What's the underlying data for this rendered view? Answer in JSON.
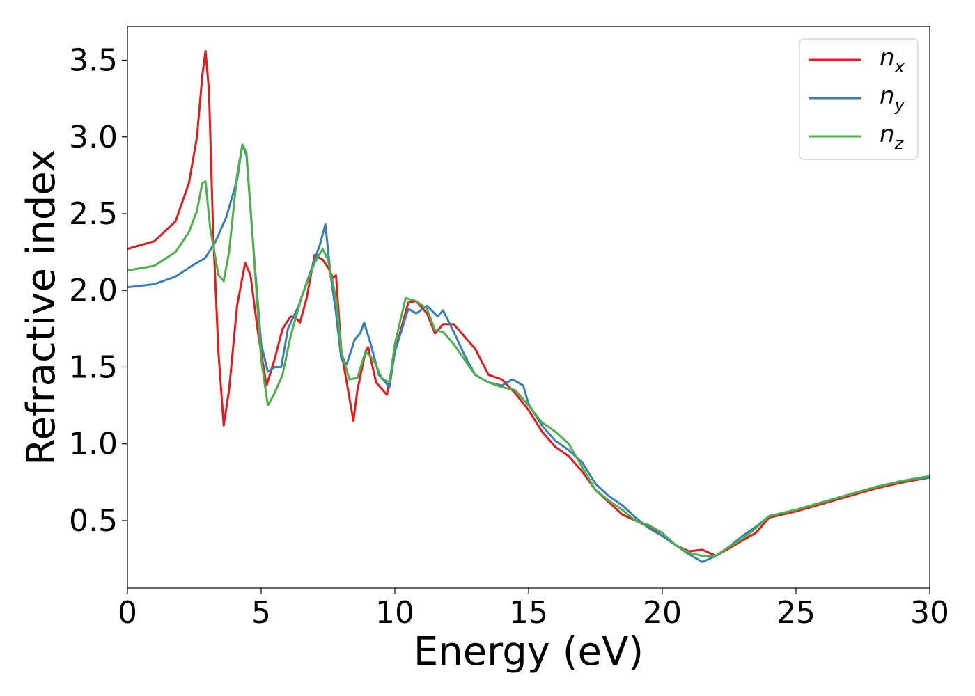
{
  "chart_data": {
    "type": "line",
    "xlabel": "Energy (eV)",
    "ylabel": "Refractive index",
    "xlim": [
      0,
      30
    ],
    "ylim": [
      0.06,
      3.72
    ],
    "x_ticks": [
      "0",
      "5",
      "10",
      "15",
      "20",
      "25",
      "30"
    ],
    "y_ticks": [
      "0.5",
      "1.0",
      "1.5",
      "2.0",
      "2.5",
      "3.0",
      "3.5"
    ],
    "x_tick_values": [
      0,
      5,
      10,
      15,
      20,
      25,
      30
    ],
    "y_tick_values": [
      0.5,
      1.0,
      1.5,
      2.0,
      2.5,
      3.0,
      3.5
    ],
    "grid": false,
    "legend_position": "top-right",
    "series": [
      {
        "name": "n_x",
        "base": "n",
        "sub": "x",
        "color": "#e41a1c",
        "points": [
          [
            0,
            2.27
          ],
          [
            1,
            2.32
          ],
          [
            1.8,
            2.45
          ],
          [
            2.3,
            2.7
          ],
          [
            2.6,
            3.0
          ],
          [
            2.8,
            3.4
          ],
          [
            2.92,
            3.56
          ],
          [
            3.05,
            3.3
          ],
          [
            3.2,
            2.4
          ],
          [
            3.4,
            1.6
          ],
          [
            3.6,
            1.12
          ],
          [
            3.8,
            1.35
          ],
          [
            4.1,
            1.9
          ],
          [
            4.4,
            2.18
          ],
          [
            4.6,
            2.1
          ],
          [
            4.9,
            1.7
          ],
          [
            5.2,
            1.38
          ],
          [
            5.5,
            1.55
          ],
          [
            5.8,
            1.75
          ],
          [
            6.1,
            1.83
          ],
          [
            6.3,
            1.82
          ],
          [
            6.45,
            1.79
          ],
          [
            6.7,
            1.95
          ],
          [
            7.0,
            2.23
          ],
          [
            7.3,
            2.2
          ],
          [
            7.5,
            2.15
          ],
          [
            7.7,
            2.08
          ],
          [
            7.8,
            2.1
          ],
          [
            8.0,
            1.6
          ],
          [
            8.3,
            1.3
          ],
          [
            8.45,
            1.15
          ],
          [
            8.6,
            1.35
          ],
          [
            8.9,
            1.6
          ],
          [
            9.0,
            1.63
          ],
          [
            9.3,
            1.4
          ],
          [
            9.7,
            1.32
          ],
          [
            10.0,
            1.6
          ],
          [
            10.5,
            1.92
          ],
          [
            10.8,
            1.93
          ],
          [
            11.2,
            1.85
          ],
          [
            11.5,
            1.72
          ],
          [
            11.8,
            1.78
          ],
          [
            12.2,
            1.78
          ],
          [
            12.6,
            1.7
          ],
          [
            13.0,
            1.62
          ],
          [
            13.5,
            1.45
          ],
          [
            14.0,
            1.42
          ],
          [
            14.5,
            1.33
          ],
          [
            15.0,
            1.22
          ],
          [
            15.5,
            1.08
          ],
          [
            16.0,
            0.98
          ],
          [
            16.5,
            0.92
          ],
          [
            17.0,
            0.82
          ],
          [
            17.5,
            0.7
          ],
          [
            18.0,
            0.62
          ],
          [
            18.5,
            0.54
          ],
          [
            19.0,
            0.5
          ],
          [
            19.5,
            0.46
          ],
          [
            20.0,
            0.4
          ],
          [
            20.5,
            0.34
          ],
          [
            21.0,
            0.3
          ],
          [
            21.5,
            0.31
          ],
          [
            22.0,
            0.27
          ],
          [
            22.5,
            0.32
          ],
          [
            23.0,
            0.37
          ],
          [
            23.5,
            0.42
          ],
          [
            24.0,
            0.52
          ],
          [
            25.0,
            0.56
          ],
          [
            26.0,
            0.61
          ],
          [
            27.0,
            0.66
          ],
          [
            28.0,
            0.71
          ],
          [
            29.0,
            0.75
          ],
          [
            30.0,
            0.78
          ]
        ]
      },
      {
        "name": "n_y",
        "base": "n",
        "sub": "y",
        "color": "#377eb8",
        "points": [
          [
            0,
            2.02
          ],
          [
            1,
            2.04
          ],
          [
            1.8,
            2.09
          ],
          [
            2.5,
            2.17
          ],
          [
            2.9,
            2.21
          ],
          [
            3.3,
            2.32
          ],
          [
            3.7,
            2.48
          ],
          [
            4.1,
            2.72
          ],
          [
            4.3,
            2.95
          ],
          [
            4.45,
            2.88
          ],
          [
            4.7,
            2.3
          ],
          [
            5.0,
            1.65
          ],
          [
            5.25,
            1.47
          ],
          [
            5.5,
            1.5
          ],
          [
            5.75,
            1.5
          ],
          [
            6.0,
            1.75
          ],
          [
            6.4,
            1.9
          ],
          [
            6.9,
            2.15
          ],
          [
            7.2,
            2.3
          ],
          [
            7.4,
            2.43
          ],
          [
            7.6,
            2.1
          ],
          [
            7.8,
            1.85
          ],
          [
            8.0,
            1.55
          ],
          [
            8.2,
            1.52
          ],
          [
            8.5,
            1.68
          ],
          [
            8.7,
            1.72
          ],
          [
            8.85,
            1.79
          ],
          [
            9.1,
            1.65
          ],
          [
            9.4,
            1.45
          ],
          [
            9.8,
            1.37
          ],
          [
            10.0,
            1.6
          ],
          [
            10.5,
            1.88
          ],
          [
            10.8,
            1.85
          ],
          [
            11.2,
            1.9
          ],
          [
            11.6,
            1.83
          ],
          [
            11.8,
            1.87
          ],
          [
            12.2,
            1.73
          ],
          [
            12.6,
            1.58
          ],
          [
            13.0,
            1.45
          ],
          [
            13.5,
            1.4
          ],
          [
            14.0,
            1.38
          ],
          [
            14.4,
            1.42
          ],
          [
            14.8,
            1.38
          ],
          [
            15.0,
            1.26
          ],
          [
            15.5,
            1.12
          ],
          [
            16.0,
            1.02
          ],
          [
            16.5,
            0.96
          ],
          [
            17.0,
            0.88
          ],
          [
            17.5,
            0.74
          ],
          [
            18.0,
            0.66
          ],
          [
            18.5,
            0.6
          ],
          [
            19.0,
            0.52
          ],
          [
            19.5,
            0.45
          ],
          [
            20.0,
            0.4
          ],
          [
            20.5,
            0.34
          ],
          [
            21.0,
            0.28
          ],
          [
            21.5,
            0.23
          ],
          [
            22.0,
            0.27
          ],
          [
            22.5,
            0.33
          ],
          [
            23.0,
            0.4
          ],
          [
            23.5,
            0.46
          ],
          [
            24.0,
            0.53
          ],
          [
            25.0,
            0.57
          ],
          [
            26.0,
            0.62
          ],
          [
            27.0,
            0.67
          ],
          [
            28.0,
            0.72
          ],
          [
            29.0,
            0.76
          ],
          [
            30.0,
            0.78
          ]
        ]
      },
      {
        "name": "n_z",
        "base": "n",
        "sub": "z",
        "color": "#4daf4a",
        "points": [
          [
            0,
            2.13
          ],
          [
            1,
            2.16
          ],
          [
            1.8,
            2.25
          ],
          [
            2.3,
            2.38
          ],
          [
            2.6,
            2.52
          ],
          [
            2.8,
            2.7
          ],
          [
            2.92,
            2.71
          ],
          [
            3.1,
            2.4
          ],
          [
            3.4,
            2.1
          ],
          [
            3.6,
            2.06
          ],
          [
            3.8,
            2.25
          ],
          [
            4.1,
            2.75
          ],
          [
            4.3,
            2.95
          ],
          [
            4.45,
            2.9
          ],
          [
            4.7,
            2.3
          ],
          [
            5.0,
            1.55
          ],
          [
            5.25,
            1.25
          ],
          [
            5.5,
            1.33
          ],
          [
            5.8,
            1.45
          ],
          [
            6.1,
            1.7
          ],
          [
            6.5,
            1.95
          ],
          [
            7.0,
            2.18
          ],
          [
            7.3,
            2.27
          ],
          [
            7.5,
            2.2
          ],
          [
            7.8,
            1.95
          ],
          [
            8.0,
            1.6
          ],
          [
            8.3,
            1.42
          ],
          [
            8.6,
            1.43
          ],
          [
            8.9,
            1.6
          ],
          [
            9.2,
            1.55
          ],
          [
            9.5,
            1.43
          ],
          [
            9.8,
            1.4
          ],
          [
            10.0,
            1.65
          ],
          [
            10.4,
            1.95
          ],
          [
            10.8,
            1.93
          ],
          [
            11.2,
            1.88
          ],
          [
            11.5,
            1.74
          ],
          [
            11.8,
            1.73
          ],
          [
            12.2,
            1.65
          ],
          [
            12.6,
            1.55
          ],
          [
            13.0,
            1.45
          ],
          [
            13.5,
            1.4
          ],
          [
            14.0,
            1.37
          ],
          [
            14.5,
            1.35
          ],
          [
            15.0,
            1.25
          ],
          [
            15.5,
            1.14
          ],
          [
            16.0,
            1.08
          ],
          [
            16.5,
            1.0
          ],
          [
            17.0,
            0.85
          ],
          [
            17.5,
            0.7
          ],
          [
            18.0,
            0.63
          ],
          [
            18.5,
            0.57
          ],
          [
            19.0,
            0.5
          ],
          [
            19.5,
            0.47
          ],
          [
            20.0,
            0.42
          ],
          [
            20.5,
            0.34
          ],
          [
            21.0,
            0.29
          ],
          [
            21.5,
            0.27
          ],
          [
            22.0,
            0.27
          ],
          [
            22.5,
            0.33
          ],
          [
            23.0,
            0.38
          ],
          [
            23.5,
            0.45
          ],
          [
            24.0,
            0.53
          ],
          [
            25.0,
            0.57
          ],
          [
            26.0,
            0.62
          ],
          [
            27.0,
            0.67
          ],
          [
            28.0,
            0.72
          ],
          [
            29.0,
            0.76
          ],
          [
            30.0,
            0.79
          ]
        ]
      }
    ]
  }
}
